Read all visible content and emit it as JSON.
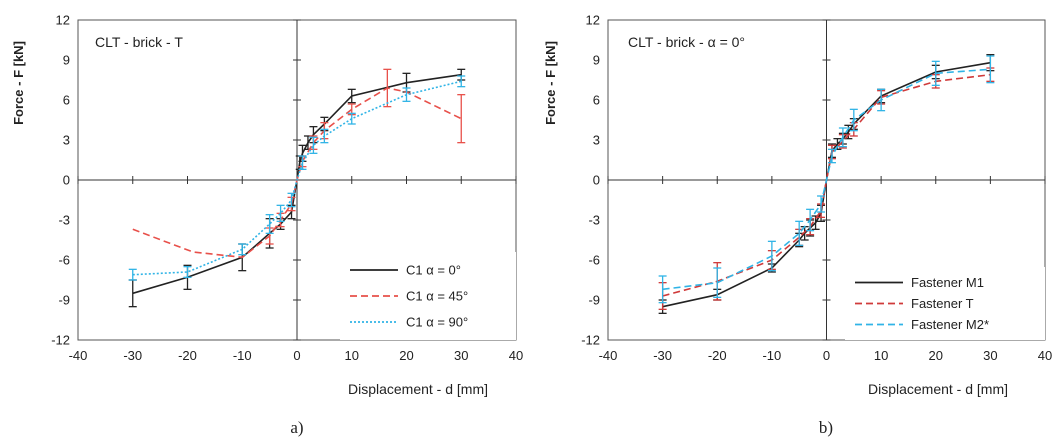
{
  "chart_data": [
    {
      "type": "line",
      "panel_label": "a)",
      "inset_title": "CLT - brick - T",
      "xlabel": "Displacement - d [mm]",
      "ylabel": "Force - F [kN]",
      "xlim": [
        -40,
        40
      ],
      "ylim": [
        -12,
        12
      ],
      "xticks": [
        -40,
        -30,
        -20,
        -10,
        0,
        10,
        20,
        30,
        40
      ],
      "yticks": [
        -12,
        -9,
        -6,
        -3,
        0,
        3,
        6,
        9,
        12
      ],
      "legend_position": "bottom-right",
      "grid": false,
      "series": [
        {
          "name": "C1 α = 0°",
          "color": "#222222",
          "dash": "solid",
          "x": [
            -30,
            -20,
            -10,
            -5,
            -3,
            -1,
            0,
            0.5,
            1,
            2,
            3,
            5,
            10,
            20,
            30
          ],
          "y": [
            -8.5,
            -7.3,
            -5.8,
            -4.0,
            -3.3,
            -2.4,
            0,
            1.3,
            2.0,
            2.8,
            3.4,
            4.2,
            6.3,
            7.3,
            7.9
          ],
          "err": [
            1.0,
            0.9,
            1.0,
            1.1,
            0.4,
            0.5,
            0,
            0.5,
            0.6,
            0.5,
            0.6,
            0.5,
            0.5,
            0.7,
            0.4
          ]
        },
        {
          "name": "C1 α = 45°",
          "color": "#e8504a",
          "dash": "dashed",
          "x": [
            -30,
            -19,
            -10,
            -5,
            -3,
            -1,
            0,
            1,
            3,
            5,
            10,
            16.5,
            20,
            30
          ],
          "y": [
            -3.7,
            -5.4,
            -5.8,
            -4.2,
            -3.0,
            -1.8,
            0,
            1.4,
            2.8,
            3.7,
            5.3,
            6.9,
            6.6,
            4.6
          ],
          "err": [
            0,
            0,
            0,
            0.6,
            0.5,
            0.5,
            0,
            0.4,
            0.5,
            0.6,
            0.4,
            1.4,
            0,
            1.8
          ]
        },
        {
          "name": "C1 α = 90°",
          "color": "#30b4e6",
          "dash": "dotted",
          "x": [
            -30,
            -20,
            -10,
            -5,
            -3,
            -1,
            0,
            1,
            3,
            5,
            10,
            20,
            30
          ],
          "y": [
            -7.1,
            -6.9,
            -5.2,
            -3.3,
            -2.5,
            -1.5,
            0,
            1.3,
            2.6,
            3.3,
            4.6,
            6.4,
            7.4
          ],
          "err": [
            0.4,
            0.4,
            0.4,
            0.7,
            0.6,
            0.5,
            0,
            0.5,
            0.6,
            0.5,
            0.4,
            0.5,
            0.4
          ]
        }
      ]
    },
    {
      "type": "line",
      "panel_label": "b)",
      "inset_title": "CLT - brick - α = 0°",
      "xlabel": "Displacement - d [mm]",
      "ylabel": "Force - F [kN]",
      "xlim": [
        -40,
        40
      ],
      "ylim": [
        -12,
        12
      ],
      "xticks": [
        -40,
        -30,
        -20,
        -10,
        0,
        10,
        20,
        30,
        40
      ],
      "yticks": [
        -12,
        -9,
        -6,
        -3,
        0,
        3,
        6,
        9,
        12
      ],
      "legend_position": "bottom-right",
      "grid": false,
      "series": [
        {
          "name": "Fastener M1",
          "color": "#222222",
          "dash": "solid",
          "x": [
            -30,
            -20,
            -10,
            -5,
            -4,
            -3,
            -2,
            -1,
            0,
            1,
            2,
            3,
            4,
            5,
            10,
            20,
            30
          ],
          "y": [
            -9.5,
            -8.6,
            -6.6,
            -4.5,
            -4.0,
            -3.6,
            -3.2,
            -2.5,
            0,
            2.2,
            2.7,
            3.1,
            3.6,
            4.2,
            6.3,
            8.1,
            8.8
          ],
          "err": [
            0.5,
            0.4,
            0.3,
            0.5,
            0.5,
            0.6,
            0.5,
            0.6,
            0,
            0.5,
            0.4,
            0.4,
            0.5,
            0.4,
            0.5,
            0.5,
            0.6
          ]
        },
        {
          "name": "Fastener T",
          "color": "#d03a3a",
          "dash": "dashed",
          "x": [
            -30,
            -20,
            -10,
            -5,
            -3,
            -1,
            0,
            1,
            3,
            5,
            10,
            20,
            30
          ],
          "y": [
            -8.7,
            -7.6,
            -6.0,
            -4.3,
            -3.5,
            -2.3,
            0,
            2.1,
            2.9,
            3.8,
            6.2,
            7.4,
            7.9
          ],
          "err": [
            1.0,
            1.4,
            0.7,
            0.6,
            0.6,
            0.5,
            0,
            0.5,
            0.5,
            0.5,
            0.5,
            0.5,
            0.5
          ]
        },
        {
          "name": "Fastener M2*",
          "color": "#30b4e6",
          "dash": "dashed",
          "x": [
            -30,
            -20,
            -10,
            -5,
            -3,
            -1,
            0,
            1,
            3,
            5,
            10,
            20,
            30
          ],
          "y": [
            -8.2,
            -7.7,
            -5.7,
            -4.0,
            -3.0,
            -1.8,
            0,
            1.8,
            3.2,
            4.5,
            6.0,
            8.0,
            8.3
          ],
          "err": [
            1.0,
            1.1,
            1.1,
            0.9,
            0.8,
            0.6,
            0,
            0.5,
            0.7,
            0.8,
            0.8,
            0.9,
            1.0
          ]
        }
      ]
    }
  ]
}
